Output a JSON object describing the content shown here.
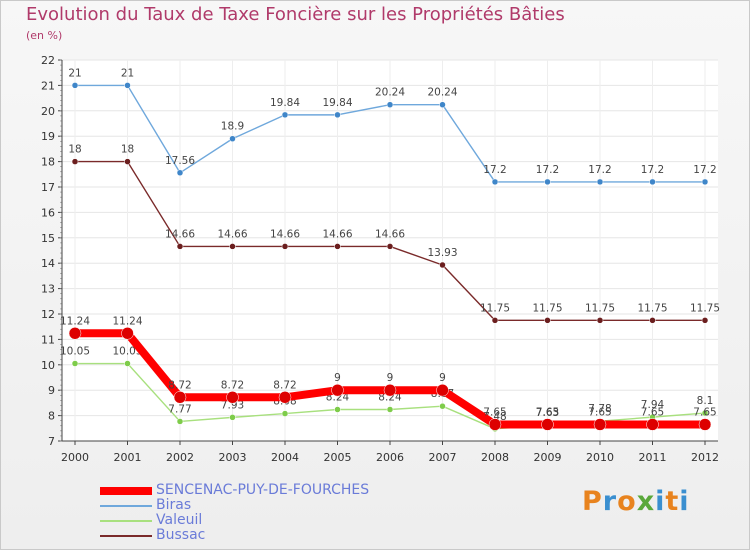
{
  "title": "Evolution du Taux de Taxe Foncière sur les Propriétés Bâties",
  "unit": "(en %)",
  "logo": {
    "text": "Proxiti",
    "colors": [
      "#e8831e",
      "#3a8fd0",
      "#e8831e",
      "#5aa83a",
      "#3a8fd0",
      "#e8831e",
      "#3a8fd0"
    ]
  },
  "chart_data": {
    "type": "line",
    "title": "Evolution du Taux de Taxe Foncière sur les Propriétés Bâties",
    "ylabel": "(en %)",
    "xlabel": "",
    "ylim": [
      7,
      22
    ],
    "yticks": [
      7,
      8,
      9,
      10,
      11,
      12,
      13,
      14,
      15,
      16,
      17,
      18,
      19,
      20,
      21,
      22
    ],
    "categories": [
      "2000",
      "2001",
      "2002",
      "2003",
      "2004",
      "2005",
      "2006",
      "2007",
      "2008",
      "2009",
      "2010",
      "2011",
      "2012"
    ],
    "series": [
      {
        "name": "Biras",
        "color": "#6fa8dc",
        "marker": "#3f86c9",
        "values": [
          21,
          21,
          17.56,
          18.9,
          19.84,
          19.84,
          20.24,
          20.24,
          17.2,
          17.2,
          17.2,
          17.2,
          17.2
        ],
        "labels": [
          "21",
          "21",
          "17.56",
          "18.9",
          "19.84",
          "19.84",
          "20.24",
          "20.24",
          "17.2",
          "17.2",
          "17.2",
          "17.2",
          "17.2"
        ]
      },
      {
        "name": "Bussac",
        "color": "#7a2a2a",
        "marker": "#6b1e1e",
        "values": [
          18,
          18,
          14.66,
          14.66,
          14.66,
          14.66,
          14.66,
          13.93,
          11.75,
          11.75,
          11.75,
          11.75,
          11.75
        ],
        "labels": [
          "18",
          "18",
          "14.66",
          "14.66",
          "14.66",
          "14.66",
          "14.66",
          "13.93",
          "11.75",
          "11.75",
          "11.75",
          "11.75",
          "11.75"
        ]
      },
      {
        "name": "Valeuil",
        "color": "#a8e07e",
        "marker": "#7ecc4a",
        "values": [
          10.05,
          10.05,
          7.77,
          7.93,
          8.08,
          8.24,
          8.24,
          8.37,
          7.48,
          7.63,
          7.78,
          7.94,
          8.1
        ],
        "labels": [
          "10.05",
          "10.05",
          "7.77",
          "7.93",
          "8.08",
          "8.24",
          "8.24",
          "8.37",
          "7.48",
          "7.63",
          "7.78",
          "7.94",
          "8.1"
        ]
      },
      {
        "name": "SENCENAC-PUY-DE-FOURCHES",
        "color": "#ff0000",
        "marker": "#dd0000",
        "values": [
          11.24,
          11.24,
          8.72,
          8.72,
          8.72,
          9,
          9,
          9,
          7.65,
          7.65,
          7.65,
          7.65,
          7.65
        ],
        "labels": [
          "11.24",
          "11.24",
          "8.72",
          "8.72",
          "8.72",
          "9",
          "9",
          "9",
          "7.65",
          "7.65",
          "7.65",
          "7.65",
          "7.65"
        ]
      }
    ],
    "legend": {
      "position": "bottom-left",
      "entries": [
        "SENCENAC-PUY-DE-FOURCHES",
        "Biras",
        "Valeuil",
        "Bussac"
      ]
    }
  }
}
